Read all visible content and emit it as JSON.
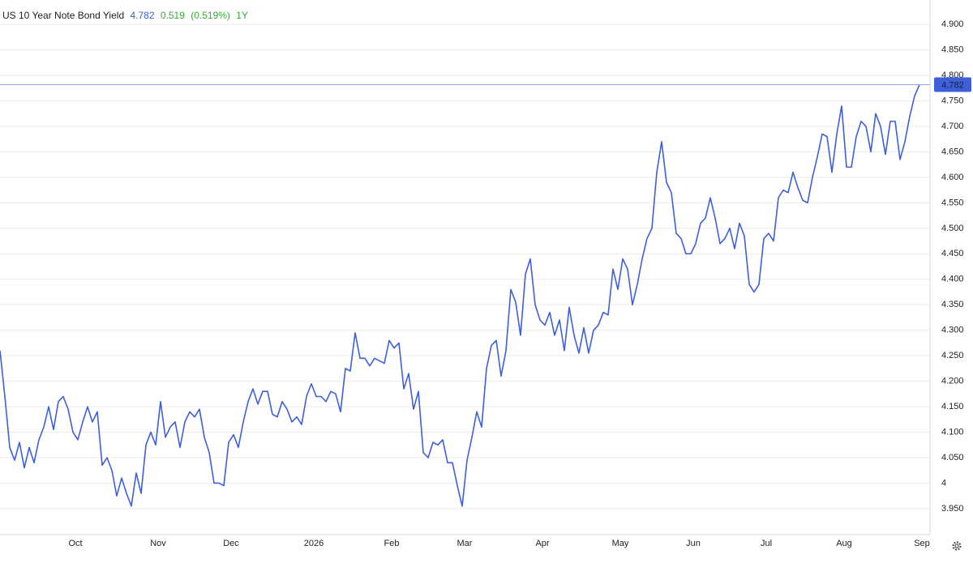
{
  "chart_data": {
    "type": "line",
    "title": "US 10 Year Note Bond Yield",
    "last_label": "4.782",
    "change_label": "0.519",
    "change_pct_label": "(0.519%)",
    "period_label": "1Y",
    "categories": [
      null,
      null,
      null,
      null,
      null,
      null,
      null,
      null,
      null,
      null,
      null,
      null,
      null,
      null,
      null,
      "Oct",
      null,
      null,
      null,
      null,
      null,
      null,
      null,
      null,
      null,
      null,
      null,
      null,
      null,
      null,
      null,
      null,
      "Nov",
      null,
      null,
      null,
      null,
      null,
      null,
      null,
      null,
      null,
      null,
      null,
      null,
      null,
      null,
      "Dec",
      null,
      null,
      null,
      null,
      null,
      null,
      null,
      null,
      null,
      null,
      null,
      null,
      null,
      null,
      null,
      null,
      "2026",
      null,
      null,
      null,
      null,
      null,
      null,
      null,
      null,
      null,
      null,
      null,
      null,
      null,
      null,
      null,
      "Feb",
      null,
      null,
      null,
      null,
      null,
      null,
      null,
      null,
      null,
      null,
      null,
      null,
      null,
      null,
      "Mar",
      null,
      null,
      null,
      null,
      null,
      null,
      null,
      null,
      null,
      null,
      null,
      null,
      null,
      null,
      null,
      "Apr",
      null,
      null,
      null,
      null,
      null,
      null,
      null,
      null,
      null,
      null,
      null,
      null,
      null,
      null,
      null,
      "May",
      null,
      null,
      null,
      null,
      null,
      null,
      null,
      null,
      null,
      null,
      null,
      null,
      null,
      null,
      "Jun",
      null,
      null,
      null,
      null,
      null,
      null,
      null,
      null,
      null,
      null,
      null,
      null,
      null,
      null,
      "Jul",
      null,
      null,
      null,
      null,
      null,
      null,
      null,
      null,
      null,
      null,
      null,
      null,
      null,
      null,
      null,
      "Aug",
      null,
      null,
      null,
      null,
      null,
      null,
      null,
      null,
      null,
      null,
      null,
      null,
      null,
      null,
      null,
      "Sep"
    ],
    "series": [
      {
        "color": "#3d5fd9",
        "values": [
          4.26,
          4.17,
          4.07,
          4.045,
          4.08,
          4.03,
          4.07,
          4.04,
          4.085,
          4.11,
          4.15,
          4.105,
          4.16,
          4.17,
          4.145,
          4.1,
          4.085,
          4.12,
          4.15,
          4.12,
          4.14,
          4.035,
          4.05,
          4.025,
          3.975,
          4.01,
          3.98,
          3.955,
          4.02,
          3.98,
          4.075,
          4.1,
          4.075,
          4.16,
          4.09,
          4.11,
          4.12,
          4.07,
          4.12,
          4.14,
          4.13,
          4.145,
          4.09,
          4.06,
          4.0,
          4.0,
          3.995,
          4.08,
          4.095,
          4.07,
          4.12,
          4.16,
          4.185,
          4.155,
          4.18,
          4.18,
          4.135,
          4.13,
          4.16,
          4.145,
          4.12,
          4.13,
          4.115,
          4.17,
          4.195,
          4.17,
          4.17,
          4.16,
          4.18,
          4.175,
          4.14,
          4.225,
          4.22,
          4.295,
          4.245,
          4.245,
          4.23,
          4.245,
          4.24,
          4.235,
          4.28,
          4.265,
          4.275,
          4.185,
          4.215,
          4.145,
          4.18,
          4.06,
          4.05,
          4.08,
          4.075,
          4.085,
          4.04,
          4.04,
          3.995,
          3.955,
          4.045,
          4.09,
          4.14,
          4.11,
          4.225,
          4.27,
          4.28,
          4.21,
          4.26,
          4.38,
          4.355,
          4.29,
          4.41,
          4.44,
          4.35,
          4.32,
          4.31,
          4.335,
          4.29,
          4.32,
          4.26,
          4.345,
          4.29,
          4.255,
          4.305,
          4.255,
          4.3,
          4.31,
          4.335,
          4.33,
          4.42,
          4.38,
          4.44,
          4.42,
          4.35,
          4.39,
          4.44,
          4.48,
          4.5,
          4.61,
          4.67,
          4.59,
          4.57,
          4.49,
          4.48,
          4.45,
          4.45,
          4.47,
          4.51,
          4.52,
          4.56,
          4.52,
          4.47,
          4.48,
          4.5,
          4.46,
          4.51,
          4.485,
          4.39,
          4.375,
          4.39,
          4.48,
          4.49,
          4.475,
          4.56,
          4.575,
          4.57,
          4.61,
          4.58,
          4.555,
          4.55,
          4.6,
          4.64,
          4.685,
          4.68,
          4.61,
          4.685,
          4.74,
          4.62,
          4.62,
          4.68,
          4.71,
          4.7,
          4.65,
          4.725,
          4.7,
          4.645,
          4.71,
          4.71,
          4.635,
          4.67,
          4.72,
          4.76,
          4.782
        ]
      }
    ],
    "ylim": [
      3.899,
      4.948
    ],
    "yticks": [
      {
        "value": 3.95,
        "label": "3.950"
      },
      4,
      {
        "value": 4.05,
        "label": "4.050"
      },
      {
        "value": 4.1,
        "label": "4.100"
      },
      {
        "value": 4.15,
        "label": "4.150"
      },
      {
        "value": 4.2,
        "label": "4.200"
      },
      {
        "value": 4.25,
        "label": "4.250"
      },
      {
        "value": 4.3,
        "label": "4.300"
      },
      {
        "value": 4.35,
        "label": "4.350"
      },
      {
        "value": 4.4,
        "label": "4.400"
      },
      {
        "value": 4.45,
        "label": "4.450"
      },
      {
        "value": 4.5,
        "label": "4.500"
      },
      {
        "value": 4.55,
        "label": "4.550"
      },
      {
        "value": 4.6,
        "label": "4.600"
      },
      {
        "value": 4.65,
        "label": "4.650"
      },
      {
        "value": 4.7,
        "label": "4.700"
      },
      {
        "value": 4.75,
        "label": "4.750"
      },
      {
        "value": 4.8,
        "label": "4.800"
      },
      {
        "value": 4.85,
        "label": "4.850"
      },
      {
        "value": 4.9,
        "label": "4.900"
      }
    ],
    "grid": true
  }
}
